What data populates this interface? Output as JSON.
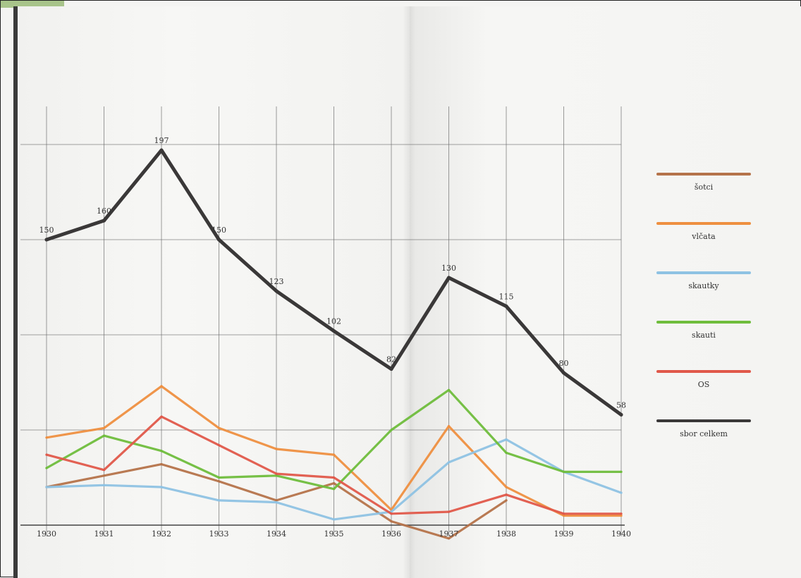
{
  "chart_data": {
    "type": "line",
    "title": "",
    "xlabel": "",
    "ylabel": "",
    "x": [
      "1930",
      "1931",
      "1932",
      "1933",
      "1934",
      "1935",
      "1936",
      "1937",
      "1938",
      "1939",
      "1940"
    ],
    "ylim": [
      0,
      200
    ],
    "grid": true,
    "legend_placement": "right",
    "series": [
      {
        "name": "šotci",
        "color": "#b5734a",
        "values": [
          20,
          26,
          32,
          23,
          13,
          22,
          2,
          -7,
          13,
          null,
          null
        ]
      },
      {
        "name": "vlčata",
        "color": "#ee8f40",
        "values": [
          46,
          51,
          73,
          51,
          40,
          37,
          8,
          52,
          20,
          5,
          5
        ]
      },
      {
        "name": "skautky",
        "color": "#8ec2e3",
        "values": [
          20,
          21,
          20,
          13,
          12,
          3,
          7,
          33,
          45,
          28,
          17
        ]
      },
      {
        "name": "skauti",
        "color": "#6fbd3c",
        "values": [
          30,
          47,
          39,
          25,
          26,
          19,
          50,
          71,
          38,
          28,
          28
        ]
      },
      {
        "name": "OS",
        "color": "#e0584a",
        "values": [
          37,
          29,
          57,
          42,
          27,
          25,
          6,
          7,
          16,
          6,
          6
        ]
      },
      {
        "name": "sbor celkem",
        "color": "#3a3838",
        "values": [
          150,
          160,
          197,
          150,
          123,
          102,
          82,
          130,
          115,
          80,
          58
        ],
        "labels": [
          "150",
          "160",
          "197",
          "150",
          "123",
          "102",
          "82",
          "130",
          "115",
          "80",
          "58"
        ]
      }
    ]
  }
}
